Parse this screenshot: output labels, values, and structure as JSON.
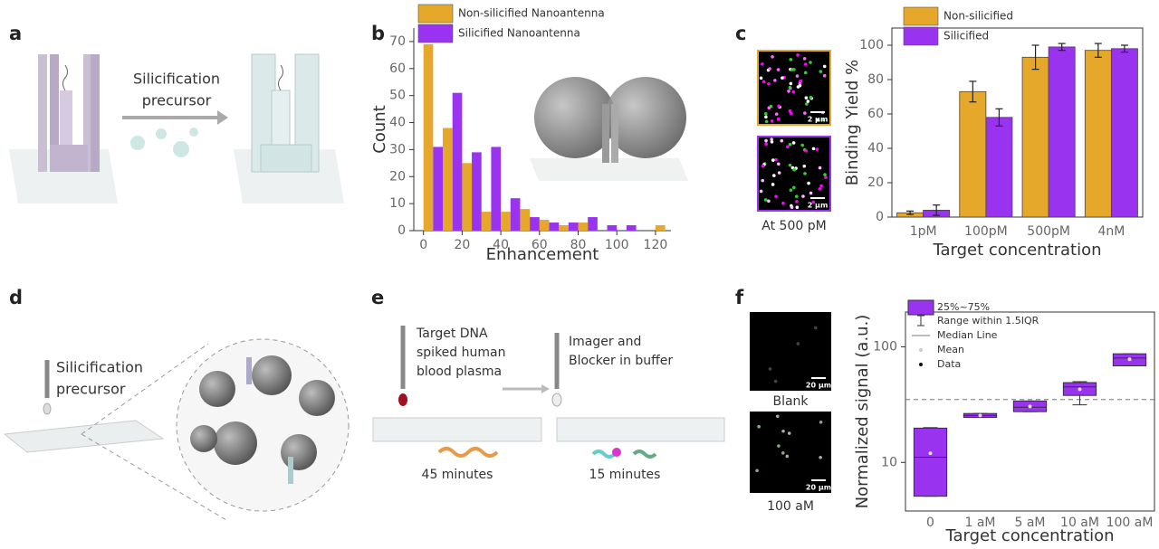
{
  "panel_labels": [
    "a",
    "b",
    "c",
    "d",
    "e",
    "f"
  ],
  "panel_a": {
    "precursor_label": [
      "Silicification",
      "precursor"
    ]
  },
  "panel_c_images": {
    "scale_labels": [
      "2 µm",
      "2 µm"
    ],
    "caption": "At 500 pM"
  },
  "panel_d": {
    "precursor_label": [
      "Silicification",
      "precursor"
    ]
  },
  "panel_e": {
    "step1_label": [
      "Target DNA",
      "spiked human",
      "blood plasma"
    ],
    "step1_time": "45 minutes",
    "step2_label": [
      "Imager and",
      "Blocker in buffer"
    ],
    "step2_time": "15 minutes"
  },
  "panel_f_images": {
    "captions": [
      "Blank",
      "100 aM"
    ],
    "scale_labels": [
      "20 µm",
      "20 µm"
    ]
  },
  "chart_data": [
    {
      "type": "histogram",
      "xlabel": "Enhancement",
      "ylabel": "Count",
      "bins": [
        0,
        10,
        20,
        30,
        40,
        50,
        60,
        70,
        80,
        90,
        100,
        110,
        120,
        130
      ],
      "series": [
        {
          "name": "Non-silicified Nanoantenna",
          "color": "#e6a82a",
          "values": [
            69,
            38,
            25,
            7,
            7,
            8,
            4,
            2,
            3,
            0,
            0,
            0,
            2
          ]
        },
        {
          "name": "Silicified Nanoantenna",
          "color": "#9a33f0",
          "values": [
            31,
            51,
            29,
            31,
            12,
            5,
            3,
            3,
            5,
            2,
            2,
            0,
            0
          ]
        }
      ],
      "xlim": [
        -5,
        128
      ],
      "xticks": [
        0,
        20,
        40,
        60,
        80,
        100,
        120
      ],
      "ylim": [
        0,
        75
      ],
      "yticks": [
        0,
        10,
        20,
        30,
        40,
        50,
        60,
        70
      ]
    },
    {
      "type": "bar",
      "xlabel": "Target concentration",
      "ylabel": "Binding Yield %",
      "categories": [
        "1pM",
        "100pM",
        "500pM",
        "4nM"
      ],
      "series": [
        {
          "name": "Non-silicified",
          "color": "#e6a82a",
          "values": [
            2.5,
            73,
            93,
            97
          ],
          "errors": [
            1,
            6,
            7,
            4
          ]
        },
        {
          "name": "Silicified",
          "color": "#9a33f0",
          "values": [
            4,
            58,
            99,
            98
          ],
          "errors": [
            3,
            5,
            2,
            2
          ]
        }
      ],
      "ylim": [
        0,
        110
      ],
      "yticks": [
        0,
        20,
        40,
        60,
        80,
        100
      ]
    },
    {
      "type": "box",
      "xlabel": "Target concentration",
      "ylabel": "Normalized signal (a.u.)",
      "categories": [
        "0",
        "1 aM",
        "5 aM",
        "10 aM",
        "100 aM"
      ],
      "color": "#9a33f0",
      "log_y": true,
      "q1": [
        5.1,
        24.5,
        27.5,
        38,
        68.5
      ],
      "median": [
        11.1,
        25.5,
        30,
        45,
        80
      ],
      "q3": [
        19.8,
        26.5,
        34,
        49,
        87
      ],
      "whisker_low": [
        5.1,
        24.5,
        27.5,
        31.5,
        68.5
      ],
      "whisker_high": [
        20,
        26.5,
        34,
        50,
        87
      ],
      "mean": [
        12,
        25.5,
        30.5,
        43,
        78
      ],
      "legend": [
        "25%~75%",
        "Range within 1.5IQR",
        "Median Line",
        "Mean",
        "Data"
      ],
      "reference_line": 35,
      "ylim": [
        3.8,
        200
      ],
      "yticks": [
        10,
        100
      ]
    }
  ]
}
